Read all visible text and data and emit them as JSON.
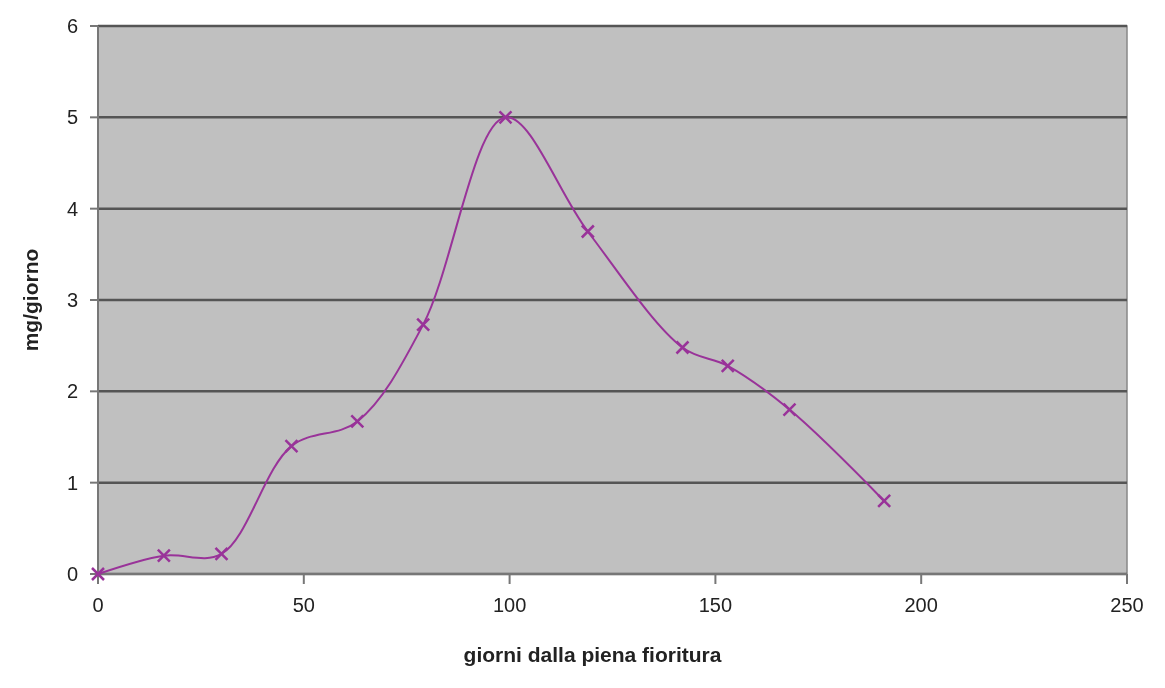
{
  "chart_data": {
    "type": "line",
    "xlabel": "giorni dalla piena fioritura",
    "ylabel": "mg/giorno",
    "x": [
      0,
      16,
      30,
      47,
      63,
      79,
      99,
      119,
      142,
      153,
      168,
      191
    ],
    "series": [
      {
        "color": "#993399",
        "values": [
          0,
          0.2,
          0.22,
          1.4,
          1.67,
          2.73,
          5.0,
          3.75,
          2.48,
          2.28,
          1.8,
          0.8
        ]
      }
    ],
    "xlim": [
      0,
      250
    ],
    "xticks": [
      0,
      50,
      100,
      150,
      200,
      250
    ],
    "ylim": [
      0,
      6
    ],
    "yticks": [
      0,
      1,
      2,
      3,
      4,
      5,
      6
    ],
    "grid": "y",
    "marker": "cross",
    "line_style": "solid"
  }
}
